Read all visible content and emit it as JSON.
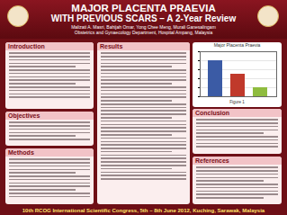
{
  "header": {
    "title": "MAJOR PLACENTA PRAEVIA",
    "subtitle": "WITH PREVIOUS SCARS – A 2-Year Review",
    "authors": "Malizati A. Masri, Bahijah Omar, Yong Chee Meng, Murali Ganesalingam",
    "affiliation": "Obstetrics and Gynaecology Department, Hospital Ampang, Malaysia"
  },
  "sections": [
    {
      "heading": "Introduction"
    },
    {
      "heading": "Objectives"
    },
    {
      "heading": "Methods"
    },
    {
      "heading": "Results"
    },
    {
      "heading": "Conclusion"
    },
    {
      "heading": "References"
    }
  ],
  "chart_data": {
    "type": "bar",
    "title": "Major Placenta Praevia",
    "categories": [
      null,
      null,
      null
    ],
    "values": [
      40,
      25,
      10
    ],
    "colors": [
      "#3b5ba5",
      "#c0392b",
      "#8fbc3f"
    ],
    "ylim": [
      0,
      50
    ],
    "yticks": [
      0,
      10,
      20,
      30,
      40,
      50
    ],
    "grid": true,
    "tick_labels": false
  },
  "figure_caption": "Figure 1",
  "footer": "10th RCOG International Scientific Congress, 5th – 8th June 2012, Kuching, Sarawak, Malaysia"
}
